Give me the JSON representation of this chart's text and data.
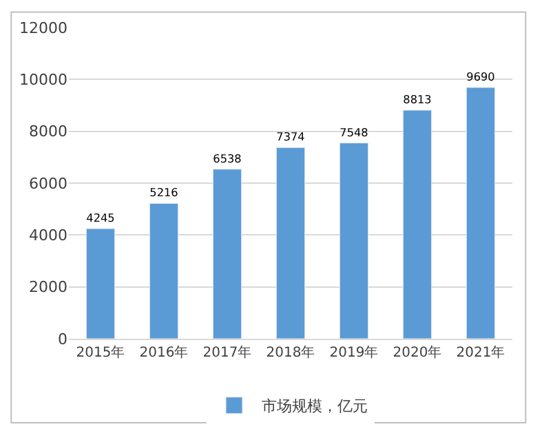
{
  "chart_data": {
    "type": "bar",
    "categories": [
      "2015年",
      "2016年",
      "2017年",
      "2018年",
      "2019年",
      "2020年",
      "2021年"
    ],
    "series": [
      {
        "name": "市场规模，亿元",
        "color": "#5b9bd5",
        "values": [
          4245,
          5216,
          6538,
          7374,
          7548,
          8813,
          9690
        ]
      }
    ],
    "ylim": [
      0,
      12000
    ],
    "yticks": [
      0,
      2000,
      4000,
      6000,
      8000,
      10000,
      12000
    ],
    "grid": "y",
    "legend": "bottom",
    "data_labels": true
  }
}
